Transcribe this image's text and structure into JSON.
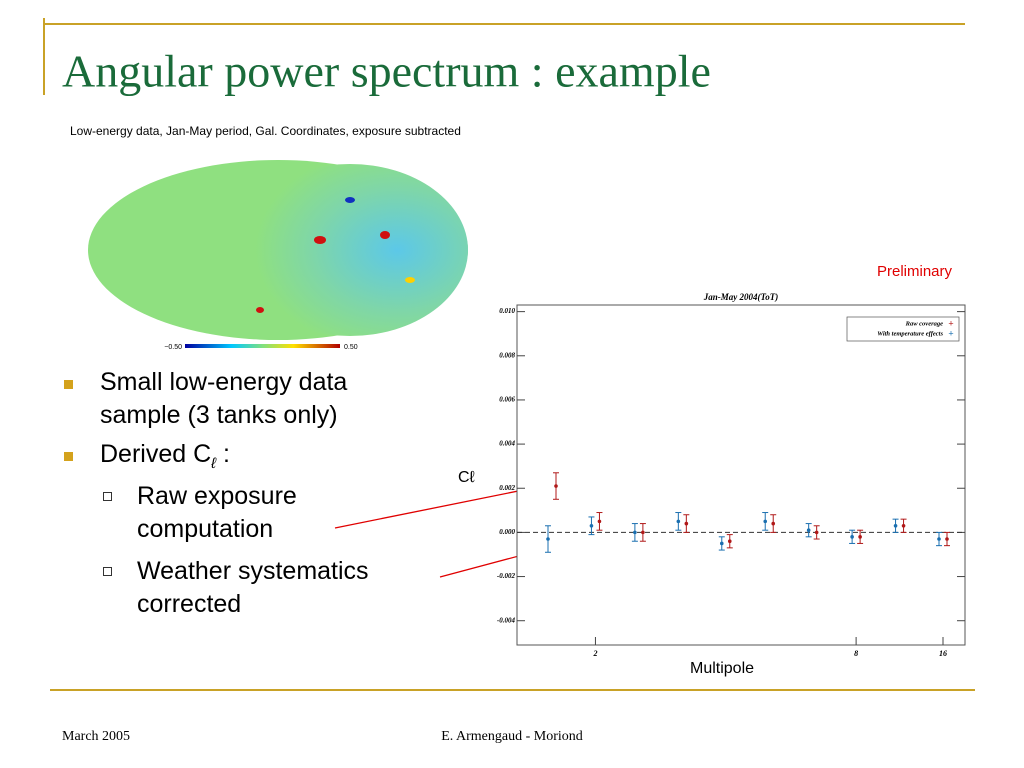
{
  "title": "Angular power spectrum : example",
  "subtitle": "Low-energy data, Jan-May period, Gal. Coordinates, exposure subtracted",
  "map_colorbar": {
    "min_label": "−0.50",
    "max_label": "0.50"
  },
  "bullets": [
    {
      "text": "Small low-energy data sample (3 tanks only)"
    },
    {
      "text": "Derived C",
      "subscript": "ℓ",
      "suffix": " :",
      "items": [
        "Raw exposure computation",
        "Weather systematics corrected"
      ]
    }
  ],
  "annotations": {
    "preliminary": "Preliminary",
    "y_label": "Cℓ",
    "x_label": "Multipole"
  },
  "chart_data": {
    "type": "errorbar",
    "title": "Jan-May 2004(ToT)",
    "categories": [
      null,
      "2",
      null,
      null,
      null,
      null,
      null,
      "8",
      null,
      "16"
    ],
    "series": [
      {
        "name": "Raw coverage",
        "color": "#b01818",
        "marker": "+",
        "values": [
          0.0021,
          0.0005,
          0.0,
          0.0004,
          -0.0004,
          0.0004,
          0.0,
          -0.0002,
          0.0003,
          -0.0003
        ],
        "errors": [
          0.0006,
          0.0004,
          0.0004,
          0.0004,
          0.0003,
          0.0004,
          0.0003,
          0.0003,
          0.0003,
          0.0003
        ]
      },
      {
        "name": "With temperature effects",
        "color": "#1a6fb0",
        "marker": "+",
        "values": [
          -0.0003,
          0.0003,
          0.0,
          0.0005,
          -0.0005,
          0.0005,
          0.0001,
          -0.0002,
          0.0003,
          -0.0003
        ],
        "errors": [
          0.0006,
          0.0004,
          0.0004,
          0.0004,
          0.0003,
          0.0004,
          0.0003,
          0.0003,
          0.0003,
          0.0003
        ]
      }
    ],
    "ylim": [
      -0.0051,
      0.0103
    ],
    "yticks": [
      {
        "value": 0.01,
        "label": "0.010"
      },
      {
        "value": 0.008,
        "label": "0.008"
      },
      {
        "value": 0.006,
        "label": "0.006"
      },
      {
        "value": 0.004,
        "label": "0.004"
      },
      {
        "value": 0.002,
        "label": "0.002"
      },
      {
        "value": 0.0,
        "label": "0.000"
      },
      {
        "value": -0.002,
        "label": "-0.002"
      },
      {
        "value": -0.004,
        "label": "-0.004"
      }
    ],
    "legend": "upper right",
    "reference_line": 0
  },
  "footer": {
    "left": "March 2005",
    "center": "E. Armengaud - Moriond"
  }
}
